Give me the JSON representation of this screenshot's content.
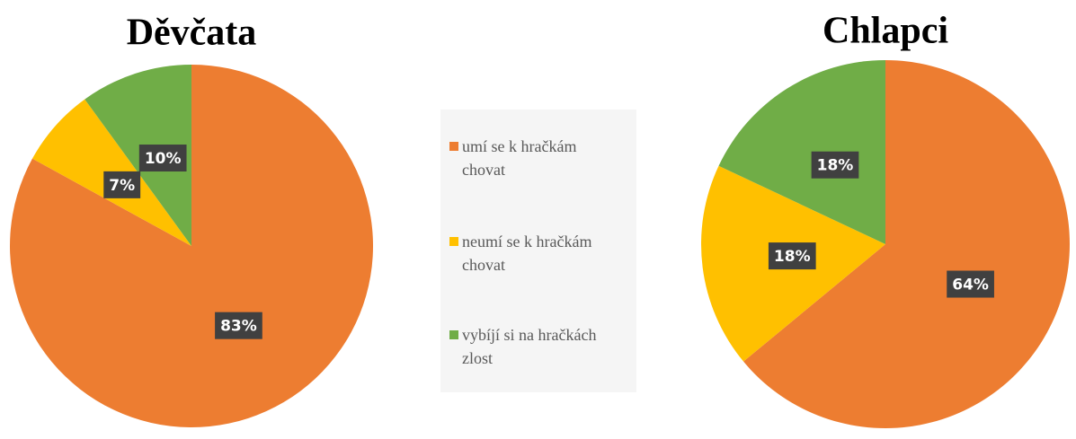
{
  "chart_data": [
    {
      "type": "pie",
      "title": "Děvčata",
      "categories": [
        "umí se k hračkám chovat",
        "neumí se k hračkám chovat",
        "vybíjí si na hračkách zlost"
      ],
      "values": [
        83,
        7,
        10
      ],
      "value_labels": [
        "83%",
        "7%",
        "10%"
      ],
      "colors": [
        "#ed7d31",
        "#ffc000",
        "#70ad47"
      ]
    },
    {
      "type": "pie",
      "title": "Chlapci",
      "categories": [
        "umí se k hračkám chovat",
        "neumí se k hračkám chovat",
        "vybíjí si na hračkách zlost"
      ],
      "values": [
        64,
        18,
        18
      ],
      "value_labels": [
        "64%",
        "18%",
        "18%"
      ],
      "colors": [
        "#ed7d31",
        "#ffc000",
        "#70ad47"
      ]
    }
  ]
}
